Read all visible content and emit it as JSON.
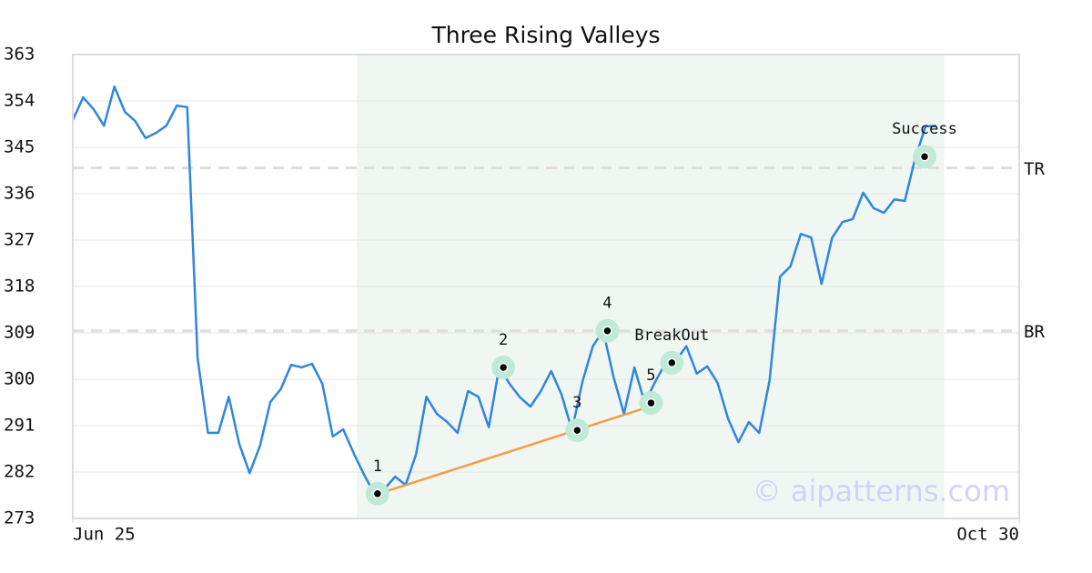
{
  "chart_data": {
    "type": "line",
    "title": "Three Rising Valleys",
    "values": [
      350.3,
      354.7,
      352.4,
      349.2,
      356.8,
      351.9,
      350.1,
      346.8,
      347.8,
      349.2,
      353.1,
      352.8,
      304.1,
      289.6,
      289.6,
      296.6,
      287.5,
      281.8,
      287.1,
      295.6,
      298.1,
      302.8,
      302.3,
      303.0,
      299.1,
      288.9,
      290.3,
      285.7,
      281.5,
      277.8,
      278.8,
      281.1,
      279.5,
      285.4,
      296.6,
      293.3,
      291.7,
      289.6,
      297.7,
      296.6,
      290.7,
      302.3,
      299.1,
      296.5,
      294.7,
      297.7,
      301.6,
      297.0,
      290.1,
      299.5,
      306.4,
      309.4,
      300.4,
      293.3,
      302.3,
      295.4,
      299.5,
      303.2,
      303.7,
      306.4,
      301.1,
      302.5,
      299.3,
      292.4,
      287.8,
      291.7,
      289.6,
      299.8,
      319.9,
      321.9,
      328.2,
      327.5,
      318.5,
      327.4,
      330.5,
      331.1,
      336.2,
      333.2,
      332.3,
      334.9,
      334.6,
      342.9,
      349.1,
      349.1
    ],
    "color": "#2f86dd",
    "xlim": [
      0,
      91
    ],
    "xticks": [
      {
        "value": 0,
        "label": "Jun 25"
      },
      {
        "value": 91,
        "label": "Oct 30"
      }
    ],
    "ylim": [
      273,
      363
    ],
    "yticks": [
      273,
      282,
      291,
      300,
      309,
      318,
      327,
      336,
      345,
      354,
      363
    ],
    "grid": true,
    "highlight_range": [
      27.3,
      83.8
    ],
    "levels": [
      {
        "label": "TR",
        "value": 341.0
      },
      {
        "label": "BR",
        "value": 309.4
      }
    ],
    "trendline": {
      "x": [
        30.2,
        55.0
      ],
      "y": [
        278.3,
        294.4
      ],
      "color": "#f39c44"
    },
    "markers": [
      {
        "label": "1",
        "x": 29.3,
        "y": 277.8
      },
      {
        "label": "2",
        "x": 41.4,
        "y": 302.3
      },
      {
        "label": "3",
        "x": 48.5,
        "y": 290.1
      },
      {
        "label": "4",
        "x": 51.4,
        "y": 309.4
      },
      {
        "label": "5",
        "x": 55.6,
        "y": 295.4
      },
      {
        "label": "BreakOut",
        "x": 57.6,
        "y": 303.2
      },
      {
        "label": "Success",
        "x": 81.9,
        "y": 343.2
      }
    ],
    "watermark": "© aipatterns.com"
  }
}
